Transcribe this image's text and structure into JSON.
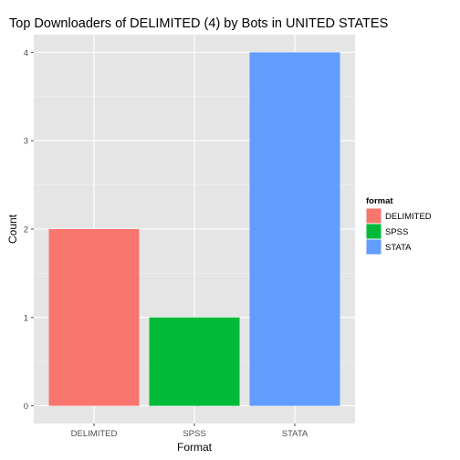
{
  "chart_data": {
    "type": "bar",
    "title": "Top Downloaders of DELIMITED (4) by Bots in UNITED STATES",
    "xlabel": "Format",
    "ylabel": "Count",
    "categories": [
      "DELIMITED",
      "SPSS",
      "STATA"
    ],
    "values": [
      2,
      1,
      4
    ],
    "colors": [
      "#F8766D",
      "#00BA38",
      "#619CFF"
    ],
    "ylim": [
      -0.2,
      4.2
    ],
    "yticks": [
      0,
      1,
      2,
      3,
      4
    ],
    "grid": true,
    "background": "#E5E5E5",
    "legend": {
      "title": "format",
      "placement": "right",
      "entries": [
        "DELIMITED",
        "SPSS",
        "STATA"
      ]
    }
  }
}
